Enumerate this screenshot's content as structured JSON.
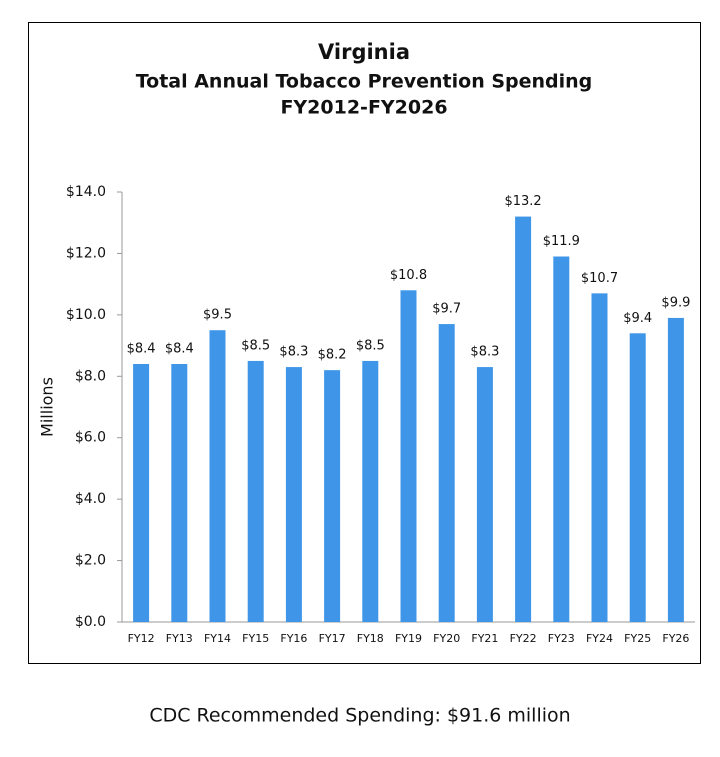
{
  "chart_data": {
    "type": "bar",
    "title": [
      "Virginia",
      "Total Annual Tobacco Prevention Spending",
      "FY2012-FY2026"
    ],
    "y_label": "Millions",
    "categories": [
      "FY12",
      "FY13",
      "FY14",
      "FY15",
      "FY16",
      "FY17",
      "FY18",
      "FY19",
      "FY20",
      "FY21",
      "FY22",
      "FY23",
      "FY24",
      "FY25",
      "FY26"
    ],
    "values": [
      8.4,
      8.4,
      9.5,
      8.5,
      8.3,
      8.2,
      8.5,
      10.8,
      9.7,
      8.3,
      13.2,
      11.9,
      10.7,
      9.4,
      9.9
    ],
    "value_labels": [
      "$8.4",
      "$8.4",
      "$9.5",
      "$8.5",
      "$8.3",
      "$8.2",
      "$8.5",
      "$10.8",
      "$9.7",
      "$8.3",
      "$13.2",
      "$11.9",
      "$10.7",
      "$9.4",
      "$9.9"
    ],
    "color": "#3f96e8",
    "ylim": [
      0,
      14
    ],
    "yticks": [
      {
        "value": 0,
        "label": "$0.0"
      },
      {
        "value": 2,
        "label": "$2.0"
      },
      {
        "value": 4,
        "label": "$4.0"
      },
      {
        "value": 6,
        "label": "$6.0"
      },
      {
        "value": 8,
        "label": "$8.0"
      },
      {
        "value": 10,
        "label": "$10.0"
      },
      {
        "value": 12,
        "label": "$12.0"
      },
      {
        "value": 14,
        "label": "$14.0"
      }
    ],
    "grid": false
  },
  "footer": "CDC Recommended Spending: $91.6 million"
}
